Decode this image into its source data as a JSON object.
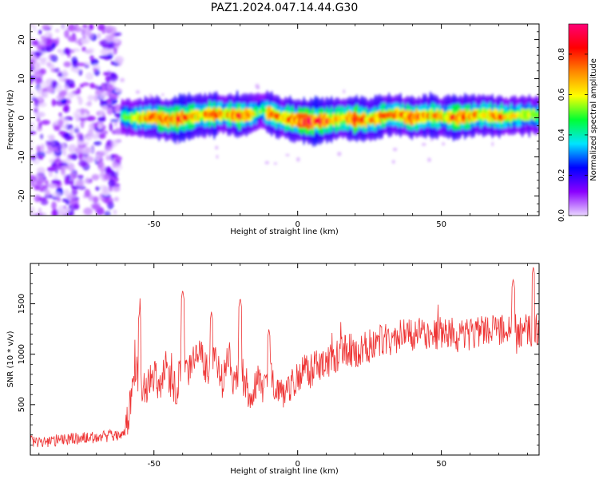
{
  "title": "PAZ1.2024.047.14.44.G30",
  "chart_data": [
    {
      "type": "heatmap",
      "xlabel": "Height of straight line (km)",
      "ylabel": "Frequency (Hz)",
      "xlim": [
        -93,
        84
      ],
      "ylim": [
        -25,
        24
      ],
      "xticks": [
        -50,
        0,
        50
      ],
      "yticks": [
        -20,
        -10,
        0,
        10,
        20
      ],
      "grid": false,
      "colorbar": {
        "label": "Normalized spectral amplitude",
        "range": [
          0,
          0.95
        ],
        "ticks": [
          0.0,
          0.2,
          0.4,
          0.6,
          0.8
        ],
        "colors": [
          "#e9d6ff",
          "#8a00ff",
          "#0000ff",
          "#00e5ff",
          "#00ff33",
          "#ffff00",
          "#ff8800",
          "#ff0000",
          "#ff0077"
        ]
      },
      "ridge": {
        "x": [
          -61,
          -55,
          -50,
          -45,
          -40,
          -35,
          -30,
          -25,
          -20,
          -15,
          -12,
          -10,
          -5,
          0,
          5,
          10,
          15,
          20,
          25,
          30,
          35,
          40,
          45,
          50,
          55,
          60,
          65,
          70,
          75,
          80,
          84
        ],
        "frequency": [
          0.2,
          0.0,
          0.3,
          -0.5,
          0.0,
          0.5,
          0.8,
          1.0,
          0.5,
          1.2,
          2.0,
          1.0,
          0.0,
          -0.8,
          -1.0,
          -0.8,
          0.0,
          -0.3,
          -0.5,
          0.5,
          0.8,
          0.0,
          0.5,
          0.3,
          0.0,
          0.5,
          0.8,
          0.3,
          0.5,
          0.8,
          0.5
        ],
        "amplitude": [
          0.5,
          0.7,
          0.78,
          0.8,
          0.9,
          0.75,
          0.85,
          0.7,
          0.9,
          0.6,
          0.5,
          0.8,
          0.75,
          0.85,
          0.9,
          0.88,
          0.7,
          0.9,
          0.75,
          0.8,
          0.7,
          0.85,
          0.8,
          0.7,
          0.85,
          0.75,
          0.7,
          0.8,
          0.65,
          0.7,
          0.6
        ]
      },
      "noise_region_x": [
        -93,
        -62
      ]
    },
    {
      "type": "line",
      "xlabel": "Height of straight line (km)",
      "ylabel": "SNR (10 * v/v)",
      "xlim": [
        -93,
        84
      ],
      "ylim": [
        0,
        1900
      ],
      "xticks": [
        -50,
        0,
        50
      ],
      "yticks": [
        500,
        1000,
        1500
      ],
      "grid": false,
      "series": [
        {
          "color": "#ee3333",
          "x": [
            -93,
            -88,
            -83,
            -78,
            -73,
            -68,
            -63,
            -60,
            -58,
            -56,
            -54,
            -52,
            -50,
            -48,
            -46,
            -44,
            -42,
            -40,
            -38,
            -36,
            -34,
            -32,
            -30,
            -28,
            -26,
            -24,
            -22,
            -20,
            -18,
            -16,
            -14,
            -12,
            -10,
            -8,
            -6,
            -4,
            -2,
            0,
            2,
            4,
            6,
            8,
            10,
            12,
            15,
            18,
            21,
            24,
            27,
            30,
            33,
            36,
            39,
            42,
            45,
            48,
            51,
            54,
            57,
            60,
            63,
            66,
            69,
            72,
            75,
            78,
            80,
            82,
            84
          ],
          "y": [
            140,
            130,
            150,
            160,
            170,
            180,
            200,
            200,
            550,
            850,
            620,
            700,
            800,
            650,
            900,
            700,
            650,
            1050,
            800,
            950,
            1000,
            850,
            950,
            900,
            700,
            1050,
            650,
            900,
            700,
            550,
            750,
            650,
            800,
            700,
            650,
            600,
            700,
            780,
            850,
            800,
            880,
            900,
            950,
            920,
            1000,
            1050,
            1020,
            1080,
            1100,
            1150,
            1150,
            1180,
            1200,
            1200,
            1220,
            1180,
            1220,
            1200,
            1180,
            1200,
            1220,
            1250,
            1200,
            1250,
            1250,
            1220,
            1250,
            1200,
            1250
          ],
          "spikes": [
            {
              "x": -55,
              "y": 1420
            },
            {
              "x": -40,
              "y": 1640
            },
            {
              "x": -30,
              "y": 1420
            },
            {
              "x": -20,
              "y": 1560
            },
            {
              "x": -10,
              "y": 1250
            },
            {
              "x": 75,
              "y": 1750
            },
            {
              "x": 82,
              "y": 1870
            }
          ]
        }
      ]
    }
  ]
}
